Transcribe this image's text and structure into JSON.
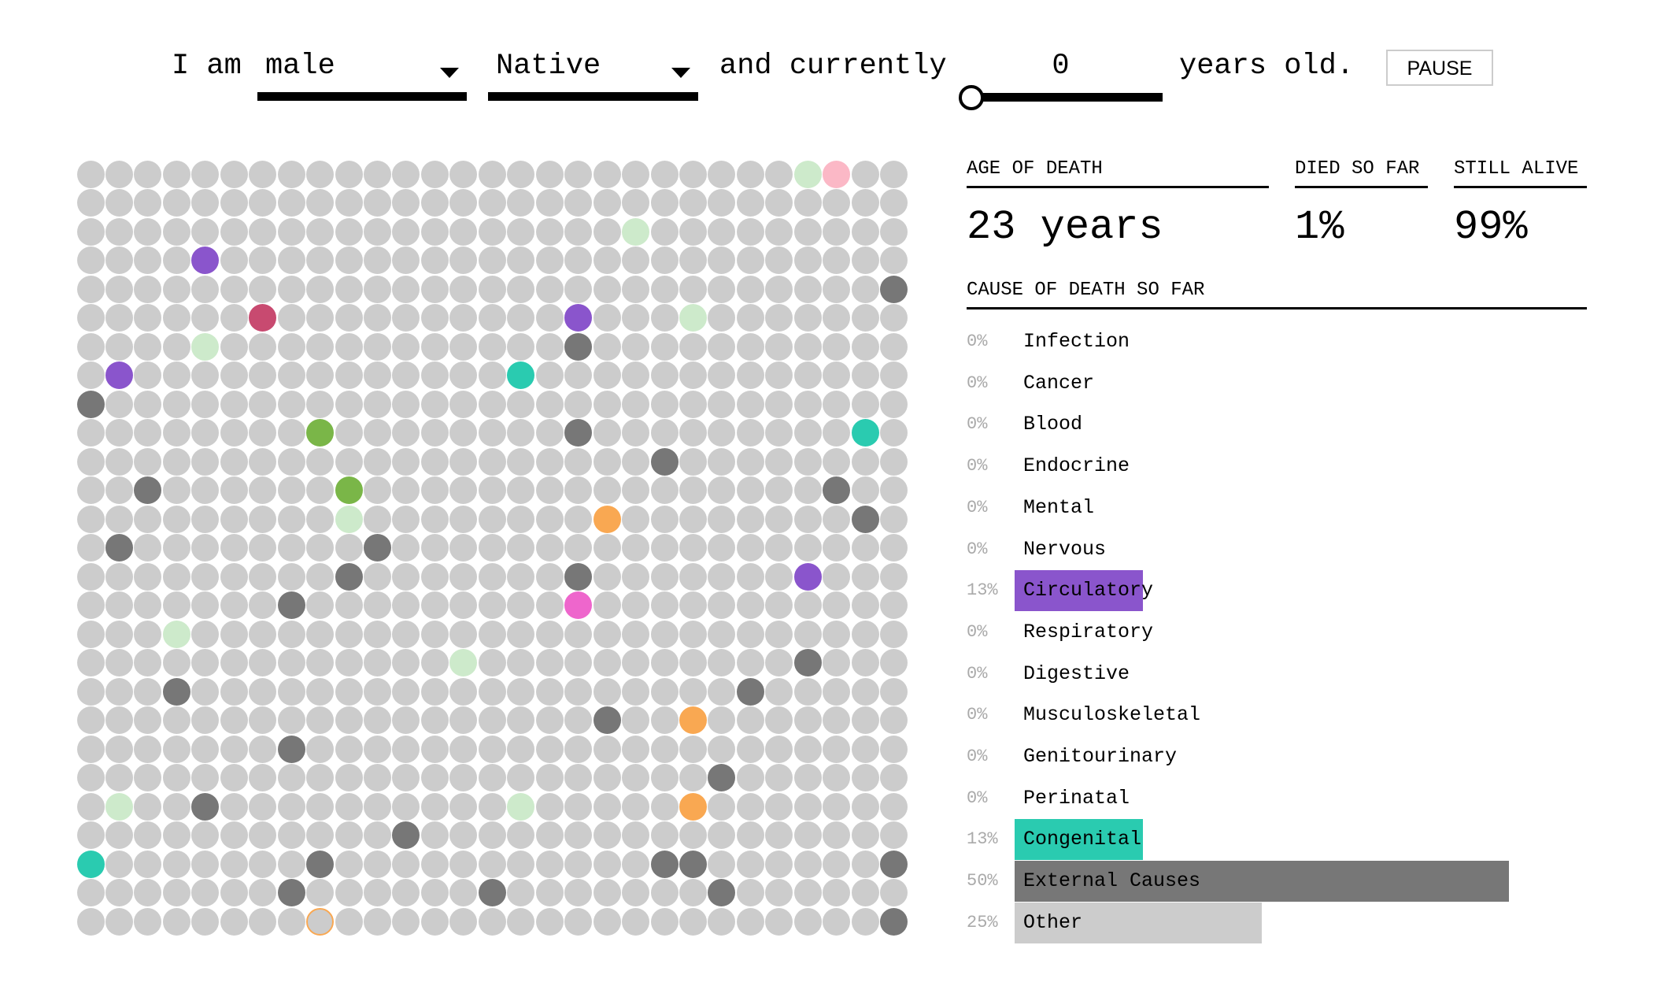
{
  "controls": {
    "prefix": "I am",
    "sex_value": "male",
    "race_value": "Native",
    "middle": "and currently",
    "age_value": "0",
    "age_fraction": 0,
    "suffix": "years old.",
    "pause_label": "PAUSE"
  },
  "stats": {
    "age_of_death_label": "AGE OF DEATH",
    "age_of_death_value": "23 years",
    "died_label": "DIED SO FAR",
    "died_value": "1%",
    "alive_label": "STILL ALIVE",
    "alive_value": "99%"
  },
  "causes_header": "CAUSE OF DEATH SO FAR",
  "causes": [
    {
      "pct_label": "0%",
      "pct": 0,
      "name": "Infection",
      "color": "#cdeacb"
    },
    {
      "pct_label": "0%",
      "pct": 0,
      "name": "Cancer",
      "color": "#fbb8c6"
    },
    {
      "pct_label": "0%",
      "pct": 0,
      "name": "Blood",
      "color": "#c84a70"
    },
    {
      "pct_label": "0%",
      "pct": 0,
      "name": "Endocrine",
      "color": "#7ab648"
    },
    {
      "pct_label": "0%",
      "pct": 0,
      "name": "Mental",
      "color": "#f9a852"
    },
    {
      "pct_label": "0%",
      "pct": 0,
      "name": "Nervous",
      "color": "#ee66cc"
    },
    {
      "pct_label": "13%",
      "pct": 13,
      "name": "Circulatory",
      "color": "#8a55cc"
    },
    {
      "pct_label": "0%",
      "pct": 0,
      "name": "Respiratory",
      "color": "#cccccc"
    },
    {
      "pct_label": "0%",
      "pct": 0,
      "name": "Digestive",
      "color": "#cccccc"
    },
    {
      "pct_label": "0%",
      "pct": 0,
      "name": "Musculoskeletal",
      "color": "#cccccc"
    },
    {
      "pct_label": "0%",
      "pct": 0,
      "name": "Genitourinary",
      "color": "#cccccc"
    },
    {
      "pct_label": "0%",
      "pct": 0,
      "name": "Perinatal",
      "color": "#cccccc"
    },
    {
      "pct_label": "13%",
      "pct": 13,
      "name": "Congenital",
      "color": "#2acbb0"
    },
    {
      "pct_label": "50%",
      "pct": 50,
      "name": "External Causes",
      "color": "#777777"
    },
    {
      "pct_label": "25%",
      "pct": 25,
      "name": "Other",
      "color": "#cccccc"
    }
  ],
  "grid": {
    "columns": 29,
    "rows": 27,
    "base_color": "#cccccc",
    "colors": {
      "lg": "#cdeacb",
      "pk": "#fbb8c6",
      "pu": "#8a55cc",
      "dg": "#777777",
      "cr": "#c84a70",
      "te": "#2acbb0",
      "gr": "#7ab648",
      "or": "#f9a852",
      "mg": "#ee66cc"
    },
    "colored": [
      [
        0,
        25,
        "lg"
      ],
      [
        0,
        26,
        "pk"
      ],
      [
        2,
        19,
        "lg"
      ],
      [
        3,
        4,
        "pu"
      ],
      [
        4,
        28,
        "dg"
      ],
      [
        5,
        6,
        "cr"
      ],
      [
        5,
        17,
        "pu"
      ],
      [
        5,
        21,
        "lg"
      ],
      [
        6,
        4,
        "lg"
      ],
      [
        6,
        17,
        "dg"
      ],
      [
        7,
        1,
        "pu"
      ],
      [
        7,
        15,
        "te"
      ],
      [
        8,
        0,
        "dg"
      ],
      [
        9,
        8,
        "gr"
      ],
      [
        9,
        17,
        "dg"
      ],
      [
        9,
        27,
        "te"
      ],
      [
        10,
        20,
        "dg"
      ],
      [
        11,
        2,
        "dg"
      ],
      [
        11,
        9,
        "gr"
      ],
      [
        11,
        26,
        "dg"
      ],
      [
        12,
        9,
        "lg"
      ],
      [
        12,
        18,
        "or"
      ],
      [
        12,
        27,
        "dg"
      ],
      [
        13,
        1,
        "dg"
      ],
      [
        13,
        10,
        "dg"
      ],
      [
        14,
        9,
        "dg"
      ],
      [
        14,
        17,
        "dg"
      ],
      [
        14,
        25,
        "pu"
      ],
      [
        15,
        7,
        "dg"
      ],
      [
        15,
        17,
        "mg"
      ],
      [
        16,
        3,
        "lg"
      ],
      [
        17,
        13,
        "lg"
      ],
      [
        17,
        25,
        "dg"
      ],
      [
        18,
        3,
        "dg"
      ],
      [
        18,
        23,
        "dg"
      ],
      [
        19,
        18,
        "dg"
      ],
      [
        19,
        21,
        "or"
      ],
      [
        20,
        7,
        "dg"
      ],
      [
        21,
        22,
        "dg"
      ],
      [
        22,
        1,
        "lg"
      ],
      [
        22,
        4,
        "dg"
      ],
      [
        22,
        15,
        "lg"
      ],
      [
        22,
        21,
        "or"
      ],
      [
        23,
        11,
        "dg"
      ],
      [
        24,
        0,
        "te"
      ],
      [
        24,
        8,
        "dg"
      ],
      [
        24,
        20,
        "dg"
      ],
      [
        24,
        21,
        "dg"
      ],
      [
        24,
        28,
        "dg"
      ],
      [
        25,
        7,
        "dg"
      ],
      [
        25,
        14,
        "dg"
      ],
      [
        25,
        22,
        "dg"
      ],
      [
        26,
        28,
        "dg"
      ]
    ],
    "outlined": [
      [
        26,
        8,
        "#f9a852"
      ]
    ]
  }
}
